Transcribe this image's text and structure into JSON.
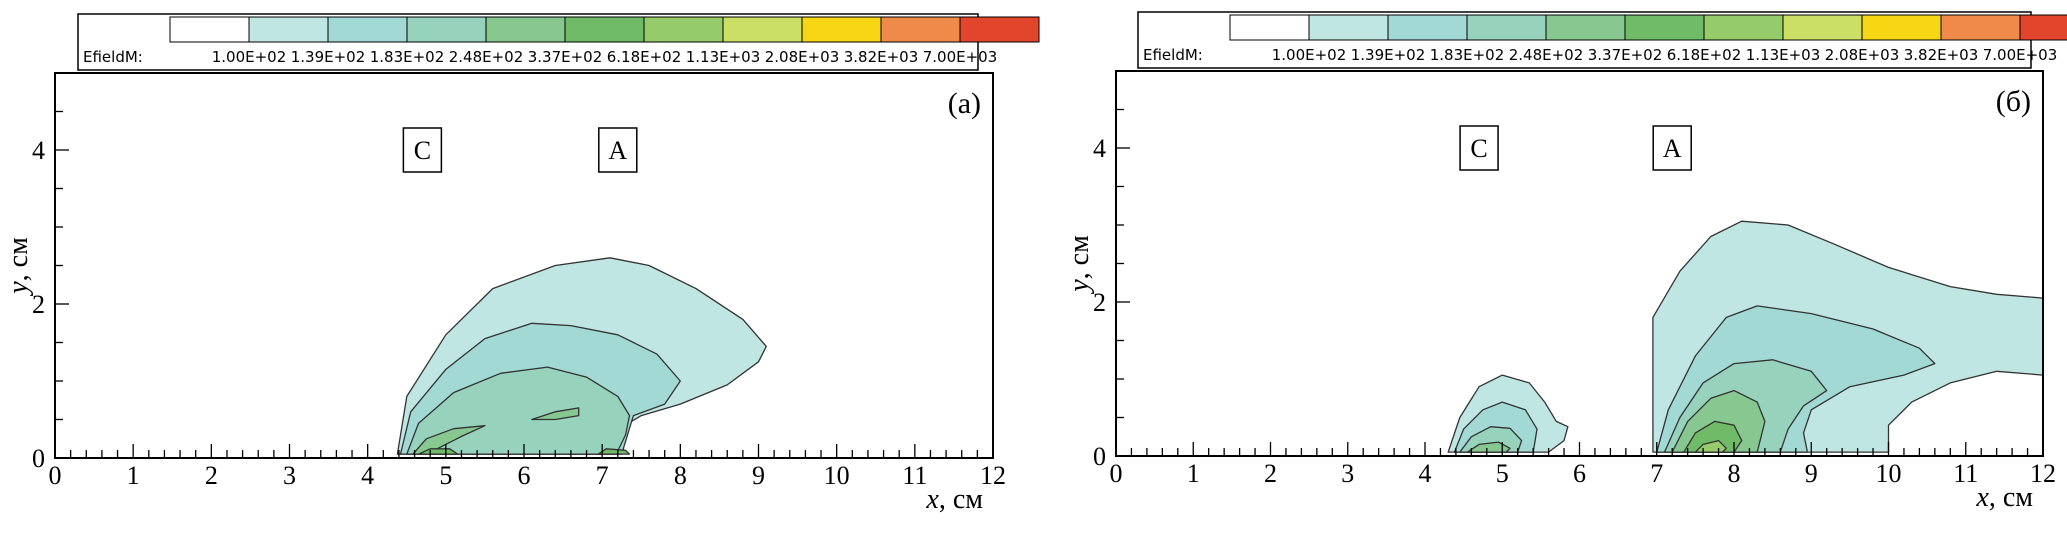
{
  "chart_data": [
    {
      "type": "contour",
      "panel_label": "(а)",
      "xlabel": "x",
      "ylabel": "y",
      "unit": "см",
      "xlim": [
        0,
        12
      ],
      "ylim": [
        0,
        5
      ],
      "x_ticks": [
        "0",
        "1",
        "2",
        "3",
        "4",
        "5",
        "6",
        "7",
        "8",
        "9",
        "10",
        "11",
        "12"
      ],
      "y_ticks": [
        "0",
        "2",
        "4"
      ],
      "y_tick_values": [
        0,
        2,
        4
      ],
      "legend": {
        "variable": "EfieldM:",
        "levels": [
          "1.00E+02",
          "1.39E+02",
          "1.83E+02",
          "2.48E+02",
          "3.37E+02",
          "6.18E+02",
          "1.13E+03",
          "2.08E+03",
          "3.82E+03",
          "7.00E+03"
        ],
        "colors": [
          "#ffffff",
          "#bfe6e2",
          "#a2d9d4",
          "#96d2bc",
          "#87c790",
          "#70bb68",
          "#95cb6a",
          "#cbdf65",
          "#f7d614",
          "#f08a4a",
          "#e2452b"
        ]
      },
      "annotations": [
        {
          "text": "C",
          "x": 4.7,
          "y": 4.0
        },
        {
          "text": "A",
          "x": 7.2,
          "y": 4.0
        }
      ],
      "contours": [
        {
          "level": 1,
          "points": [
            [
              4.38,
              0.05
            ],
            [
              4.5,
              0.8
            ],
            [
              5.0,
              1.6
            ],
            [
              5.6,
              2.2
            ],
            [
              6.4,
              2.5
            ],
            [
              7.1,
              2.6
            ],
            [
              7.6,
              2.5
            ],
            [
              8.2,
              2.2
            ],
            [
              8.8,
              1.8
            ],
            [
              9.1,
              1.45
            ],
            [
              9.0,
              1.25
            ],
            [
              8.6,
              0.95
            ],
            [
              8.0,
              0.7
            ],
            [
              7.5,
              0.55
            ],
            [
              7.25,
              0.4
            ],
            [
              7.2,
              0.05
            ]
          ]
        },
        {
          "level": 2,
          "points": [
            [
              4.42,
              0.05
            ],
            [
              4.55,
              0.6
            ],
            [
              5.0,
              1.15
            ],
            [
              5.5,
              1.55
            ],
            [
              6.1,
              1.75
            ],
            [
              6.6,
              1.72
            ],
            [
              7.2,
              1.6
            ],
            [
              7.7,
              1.35
            ],
            [
              8.0,
              1.0
            ],
            [
              7.8,
              0.7
            ],
            [
              7.4,
              0.55
            ],
            [
              7.25,
              0.05
            ]
          ]
        },
        {
          "level": 3,
          "points": [
            [
              4.5,
              0.05
            ],
            [
              4.65,
              0.45
            ],
            [
              5.1,
              0.85
            ],
            [
              5.7,
              1.1
            ],
            [
              6.3,
              1.18
            ],
            [
              6.8,
              1.05
            ],
            [
              7.2,
              0.8
            ],
            [
              7.35,
              0.55
            ],
            [
              7.3,
              0.3
            ],
            [
              7.18,
              0.05
            ]
          ]
        },
        {
          "level": 4,
          "points": [
            [
              4.58,
              0.05
            ],
            [
              4.75,
              0.25
            ],
            [
              5.1,
              0.38
            ],
            [
              5.5,
              0.42
            ],
            [
              5.2,
              0.28
            ],
            [
              4.85,
              0.1
            ],
            [
              4.75,
              0.05
            ]
          ]
        },
        {
          "level": 4,
          "points": [
            [
              6.1,
              0.5
            ],
            [
              6.4,
              0.6
            ],
            [
              6.7,
              0.65
            ],
            [
              6.7,
              0.55
            ],
            [
              6.4,
              0.5
            ]
          ]
        },
        {
          "level": 5,
          "points": [
            [
              4.65,
              0.05
            ],
            [
              4.8,
              0.12
            ],
            [
              5.05,
              0.12
            ],
            [
              5.15,
              0.05
            ]
          ]
        },
        {
          "level": 5,
          "points": [
            [
              6.95,
              0.05
            ],
            [
              7.05,
              0.12
            ],
            [
              7.3,
              0.1
            ],
            [
              7.35,
              0.05
            ]
          ]
        }
      ]
    },
    {
      "type": "contour",
      "panel_label": "(б)",
      "xlabel": "x",
      "ylabel": "y",
      "unit": "см",
      "xlim": [
        0,
        12
      ],
      "ylim": [
        0,
        5
      ],
      "x_ticks": [
        "0",
        "1",
        "2",
        "3",
        "4",
        "5",
        "6",
        "7",
        "8",
        "9",
        "10",
        "11",
        "12"
      ],
      "y_ticks": [
        "0",
        "2",
        "4"
      ],
      "y_tick_values": [
        0,
        2,
        4
      ],
      "legend": {
        "variable": "EfieldM:",
        "levels": [
          "1.00E+02",
          "1.39E+02",
          "1.83E+02",
          "2.48E+02",
          "3.37E+02",
          "6.18E+02",
          "1.13E+03",
          "2.08E+03",
          "3.82E+03",
          "7.00E+03"
        ],
        "colors": [
          "#ffffff",
          "#bfe6e2",
          "#a2d9d4",
          "#96d2bc",
          "#87c790",
          "#70bb68",
          "#95cb6a",
          "#cbdf65",
          "#f7d614",
          "#f08a4a",
          "#e2452b"
        ]
      },
      "annotations": [
        {
          "text": "C",
          "x": 4.7,
          "y": 4.0
        },
        {
          "text": "A",
          "x": 7.2,
          "y": 4.0
        }
      ],
      "contours": [
        {
          "level": 1,
          "points": [
            [
              4.3,
              0.05
            ],
            [
              4.45,
              0.5
            ],
            [
              4.7,
              0.9
            ],
            [
              5.0,
              1.05
            ],
            [
              5.35,
              0.95
            ],
            [
              5.55,
              0.7
            ],
            [
              5.7,
              0.45
            ],
            [
              5.85,
              0.38
            ],
            [
              5.8,
              0.2
            ],
            [
              5.6,
              0.05
            ]
          ]
        },
        {
          "level": 2,
          "points": [
            [
              4.38,
              0.05
            ],
            [
              4.5,
              0.35
            ],
            [
              4.75,
              0.6
            ],
            [
              5.0,
              0.7
            ],
            [
              5.3,
              0.6
            ],
            [
              5.45,
              0.35
            ],
            [
              5.4,
              0.05
            ]
          ]
        },
        {
          "level": 3,
          "points": [
            [
              4.45,
              0.05
            ],
            [
              4.6,
              0.25
            ],
            [
              4.85,
              0.38
            ],
            [
              5.1,
              0.36
            ],
            [
              5.25,
              0.2
            ],
            [
              5.2,
              0.05
            ]
          ]
        },
        {
          "level": 4,
          "points": [
            [
              4.55,
              0.05
            ],
            [
              4.7,
              0.15
            ],
            [
              4.95,
              0.18
            ],
            [
              5.1,
              0.1
            ],
            [
              5.05,
              0.05
            ]
          ]
        },
        {
          "level": 1,
          "points": [
            [
              6.95,
              0.05
            ],
            [
              6.95,
              1.8
            ],
            [
              7.3,
              2.4
            ],
            [
              7.7,
              2.85
            ],
            [
              8.1,
              3.05
            ],
            [
              8.7,
              3.0
            ],
            [
              9.3,
              2.75
            ],
            [
              10.0,
              2.45
            ],
            [
              10.8,
              2.2
            ],
            [
              11.4,
              2.1
            ],
            [
              12.0,
              2.05
            ],
            [
              12.0,
              1.05
            ],
            [
              11.4,
              1.1
            ],
            [
              10.8,
              0.95
            ],
            [
              10.3,
              0.7
            ],
            [
              10.0,
              0.4
            ],
            [
              10.0,
              0.05
            ]
          ]
        },
        {
          "level": 2,
          "points": [
            [
              7.0,
              0.05
            ],
            [
              7.15,
              0.6
            ],
            [
              7.5,
              1.3
            ],
            [
              7.9,
              1.8
            ],
            [
              8.3,
              1.95
            ],
            [
              9.0,
              1.85
            ],
            [
              9.8,
              1.65
            ],
            [
              10.4,
              1.4
            ],
            [
              10.6,
              1.2
            ],
            [
              10.2,
              1.05
            ],
            [
              9.5,
              0.9
            ],
            [
              9.0,
              0.6
            ],
            [
              8.9,
              0.3
            ],
            [
              8.95,
              0.05
            ]
          ]
        },
        {
          "level": 3,
          "points": [
            [
              7.1,
              0.05
            ],
            [
              7.3,
              0.5
            ],
            [
              7.6,
              0.95
            ],
            [
              8.0,
              1.2
            ],
            [
              8.5,
              1.25
            ],
            [
              9.0,
              1.1
            ],
            [
              9.2,
              0.85
            ],
            [
              8.9,
              0.65
            ],
            [
              8.7,
              0.35
            ],
            [
              8.6,
              0.05
            ]
          ]
        },
        {
          "level": 4,
          "points": [
            [
              7.2,
              0.05
            ],
            [
              7.4,
              0.45
            ],
            [
              7.7,
              0.75
            ],
            [
              8.0,
              0.85
            ],
            [
              8.3,
              0.7
            ],
            [
              8.4,
              0.45
            ],
            [
              8.3,
              0.05
            ]
          ]
        },
        {
          "level": 5,
          "points": [
            [
              7.35,
              0.05
            ],
            [
              7.5,
              0.3
            ],
            [
              7.75,
              0.45
            ],
            [
              8.0,
              0.4
            ],
            [
              8.1,
              0.2
            ],
            [
              8.0,
              0.05
            ]
          ]
        },
        {
          "level": 6,
          "points": [
            [
              7.5,
              0.05
            ],
            [
              7.6,
              0.15
            ],
            [
              7.8,
              0.2
            ],
            [
              7.9,
              0.1
            ],
            [
              7.85,
              0.05
            ]
          ]
        }
      ]
    }
  ]
}
